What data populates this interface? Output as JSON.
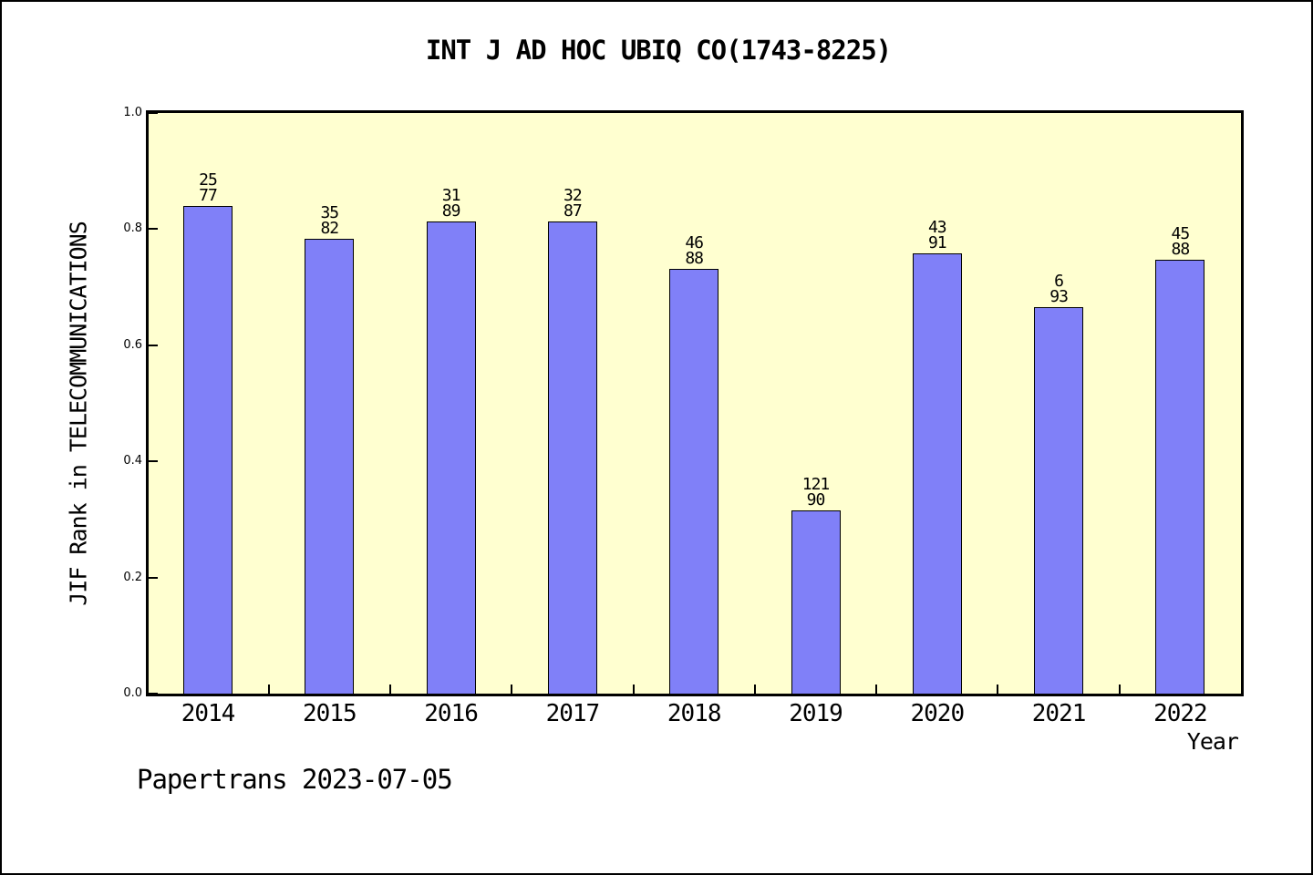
{
  "title": "INT J AD HOC UBIQ CO(1743-8225)",
  "footer": "Papertrans 2023-07-05",
  "chart_data": {
    "type": "bar",
    "title": "INT J AD HOC UBIQ CO(1743-8225)",
    "xlabel": "Year",
    "ylabel": "JIF Rank in TELECOMMUNICATIONS",
    "categories": [
      "2014",
      "2015",
      "2016",
      "2017",
      "2018",
      "2019",
      "2020",
      "2021",
      "2022"
    ],
    "values": [
      0.84,
      0.784,
      0.813,
      0.813,
      0.731,
      0.316,
      0.759,
      0.666,
      0.747
    ],
    "bar_labels": [
      [
        "25",
        "77"
      ],
      [
        "35",
        "82"
      ],
      [
        "31",
        "89"
      ],
      [
        "32",
        "87"
      ],
      [
        "46",
        "88"
      ],
      [
        "121",
        "90"
      ],
      [
        "43",
        "91"
      ],
      [
        "6",
        "93"
      ],
      [
        "45",
        "88"
      ]
    ],
    "ylim": [
      0,
      1
    ],
    "y_tick_labels": [
      "0.0",
      "0.2",
      "0.4",
      "0.6",
      "0.8",
      "1.0"
    ],
    "grid": "off",
    "legend": "none",
    "colors": {
      "bar_fill": "#8080F8",
      "bar_edge": "#000000",
      "plot_background": "#FFFFD0",
      "page_background": "#FFFFFF",
      "text": "#000000"
    }
  }
}
